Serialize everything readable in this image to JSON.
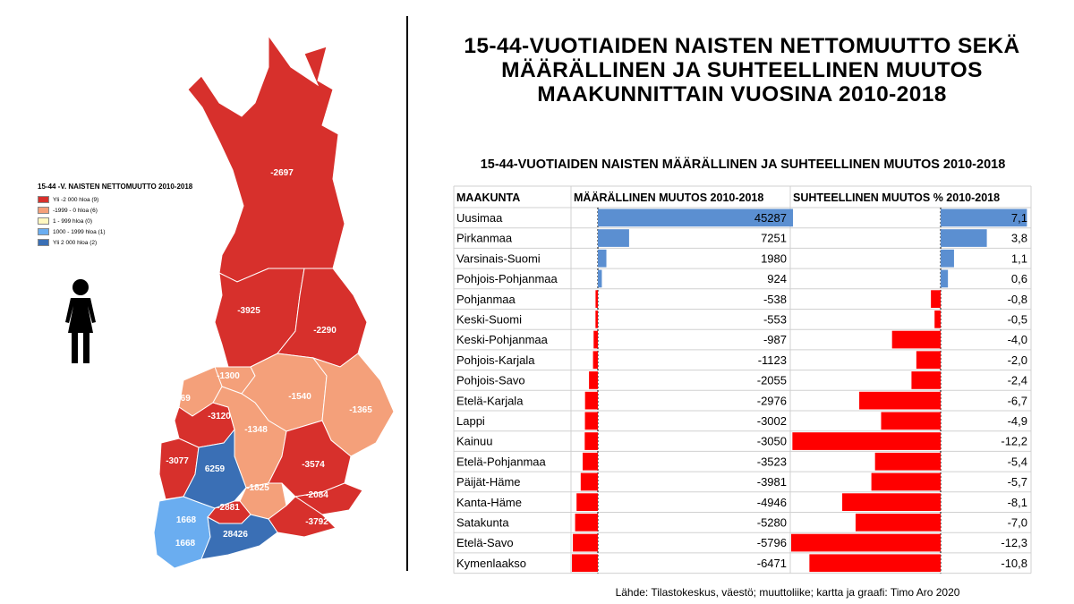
{
  "main_title": {
    "line1": "15-44-VUOTIAIDEN NAISTEN NETTOMUUTTO SEKÄ",
    "line2": "MÄÄRÄLLINEN JA SUHTEELLINEN MUUTOS",
    "line3": "MAAKUNNITTAIN VUOSINA 2010-2018"
  },
  "map": {
    "legend_title": "15-44 -V. NAISTEN NETTOMUUTTO 2010-2018",
    "legend_items": [
      {
        "label": "Yli -2 000 hloa (9)",
        "color": "#d7302c"
      },
      {
        "label": "-1999 - 0 hloa (6)",
        "color": "#f4a07a"
      },
      {
        "label": "1 - 999 hloa (0)",
        "color": "#fff8c0"
      },
      {
        "label": "1000 - 1999 hloa (1)",
        "color": "#6aadf0"
      },
      {
        "label": "Yli 2 000 hloa (2)",
        "color": "#3a6fb5"
      }
    ],
    "region_labels": [
      "-2697",
      "-3925",
      "-2290",
      "-1300",
      "-1769",
      "-3120",
      "-1540",
      "-1365",
      "-1348",
      "-3077",
      "6259",
      "-3574",
      "-1825",
      "-2084",
      "-2881",
      "-3792",
      "1668",
      "28426",
      "1668"
    ]
  },
  "chart_data": {
    "type": "bar",
    "title": "15-44-VUOTIAIDEN NAISTEN MÄÄRÄLLINEN JA SUHTEELLINEN MUUTOS 2010-2018",
    "columns": [
      "MAAKUNTA",
      "MÄÄRÄLLINEN MUUTOS 2010-2018",
      "SUHTEELLINEN MUUTOS % 2010-2018"
    ],
    "categories": [
      "Uusimaa",
      "Pirkanmaa",
      "Varsinais-Suomi",
      "Pohjois-Pohjanmaa",
      "Pohjanmaa",
      "Keski-Suomi",
      "Keski-Pohjanmaa",
      "Pohjois-Karjala",
      "Pohjois-Savo",
      "Etelä-Karjala",
      "Lappi",
      "Kainuu",
      "Etelä-Pohjanmaa",
      "Päijät-Häme",
      "Kanta-Häme",
      "Satakunta",
      "Etelä-Savo",
      "Kymenlaakso"
    ],
    "series": [
      {
        "name": "MÄÄRÄLLINEN MUUTOS 2010-2018",
        "values": [
          45287,
          7251,
          1980,
          924,
          -538,
          -553,
          -987,
          -1123,
          -2055,
          -2976,
          -3002,
          -3050,
          -3523,
          -3981,
          -4946,
          -5280,
          -5796,
          -6471
        ],
        "labels": [
          "45287",
          "7251",
          "1980",
          "924",
          "-538",
          "-553",
          "-987",
          "-1123",
          "-2055",
          "-2976",
          "-3002",
          "-3050",
          "-3523",
          "-3981",
          "-4946",
          "-5280",
          "-5796",
          "-6471"
        ]
      },
      {
        "name": "SUHTEELLINEN MUUTOS % 2010-2018",
        "values": [
          7.1,
          3.8,
          1.1,
          0.6,
          -0.8,
          -0.5,
          -4.0,
          -2.0,
          -2.4,
          -6.7,
          -4.9,
          -12.2,
          -5.4,
          -5.7,
          -8.1,
          -7.0,
          -12.3,
          -10.8
        ],
        "labels": [
          "7,1",
          "3,8",
          "1,1",
          "0,6",
          "-0,8",
          "-0,5",
          "-4,0",
          "-2,0",
          "-2,4",
          "-6,7",
          "-4,9",
          "-12,2",
          "-5,4",
          "-5,7",
          "-8,1",
          "-7,0",
          "-12,3",
          "-10,8"
        ]
      }
    ],
    "colors": {
      "positive": "#5b8fd1",
      "negative": "#ff0000"
    }
  },
  "source": "Lähde: Tilastokeskus, väestö; muuttoliike;  kartta ja graafi: Timo Aro 2020"
}
